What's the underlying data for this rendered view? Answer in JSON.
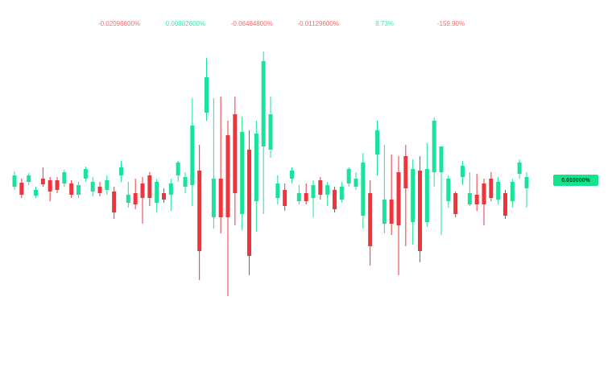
{
  "chart_data": {
    "type": "candlestick",
    "annotations": [
      {
        "text": "-0.02096600%",
        "color": "#f26b6b"
      },
      {
        "text": "0.00882600%",
        "color": "#3fe6b4"
      },
      {
        "text": "-0.06484800%",
        "color": "#f26b6b"
      },
      {
        "text": "-0.01129600%",
        "color": "#f26b6b"
      },
      {
        "text": "8.73%",
        "color": "#3fe6b4"
      },
      {
        "text": "-159.90%",
        "color": "#f26b6b"
      }
    ],
    "last_price": {
      "value": 0.01,
      "label": "0.010000%"
    },
    "last_price_color": "#14e38e",
    "up_color": "#19e39a",
    "down_color": "#f0343c",
    "ylim": [
      -0.111,
      0.122
    ],
    "categories": [
      null,
      null,
      null,
      null,
      null,
      null,
      null,
      null,
      null,
      null,
      null,
      null,
      null,
      null,
      null,
      null,
      null,
      null,
      null,
      null,
      null,
      null,
      null,
      null,
      null,
      null,
      null,
      null,
      null,
      null,
      null,
      null,
      null,
      null,
      null,
      null,
      null,
      null,
      null,
      null,
      null,
      null,
      null,
      null,
      null,
      null,
      null,
      null,
      null,
      null,
      null,
      null,
      null,
      null,
      null,
      null,
      null,
      null,
      null,
      null,
      null,
      null,
      null,
      null,
      null,
      null,
      null,
      null,
      null,
      null,
      null,
      null,
      null
    ],
    "open": [
      0.006,
      0.0085,
      0.009,
      0.0005,
      0.011,
      0.01,
      0.01,
      0.008,
      0.008,
      0.001,
      0.011,
      0.003,
      0.006,
      0.004,
      0.003,
      0.013,
      -0.004,
      0.002,
      0.008,
      0.013,
      -0.004,
      0.002,
      0.001,
      0.013,
      0.006,
      0.007,
      0.016,
      0.052,
      -0.013,
      0.011,
      0.038,
      0.051,
      -0.011,
      0.029,
      -0.003,
      0.031,
      0.029,
      -0.001,
      0.004,
      0.011,
      -0.003,
      0.002,
      -0.001,
      0.01,
      0.001,
      0.004,
      -0.002,
      0.008,
      0.006,
      -0.012,
      0.002,
      0.026,
      -0.017,
      -0.002,
      0.015,
      0.025,
      -0.016,
      0.016,
      -0.016,
      0.015,
      0.015,
      -0.003,
      0.002,
      0.012,
      -0.005,
      0.001,
      0.008,
      0.011,
      -0.002,
      0.002,
      -0.003,
      0.014,
      0.005
    ],
    "close": [
      0.013,
      0.001,
      0.013,
      0.004,
      0.0075,
      0.003,
      0.004,
      0.015,
      0.001,
      0.007,
      0.017,
      0.009,
      0.002,
      0.01,
      -0.01,
      0.018,
      0.001,
      -0.005,
      -0.001,
      -0.001,
      0.009,
      -0.002,
      0.008,
      0.021,
      0.012,
      0.044,
      -0.034,
      0.074,
      0.011,
      -0.013,
      -0.013,
      0.002,
      0.04,
      -0.037,
      0.039,
      0.084,
      0.051,
      0.008,
      -0.006,
      0.016,
      0.002,
      -0.003,
      0.007,
      0.001,
      0.007,
      -0.008,
      0.006,
      0.017,
      0.011,
      0.021,
      -0.031,
      0.041,
      -0.002,
      -0.017,
      -0.018,
      0.005,
      0.017,
      -0.034,
      0.017,
      0.047,
      0.031,
      0.011,
      -0.011,
      0.019,
      0.002,
      -0.005,
      -0.005,
      -0.001,
      0.009,
      -0.012,
      0.009,
      0.021,
      0.012
    ],
    "high": [
      0.0155,
      0.011,
      0.0145,
      0.006,
      0.018,
      0.012,
      0.012,
      0.0165,
      0.01,
      0.009,
      0.0185,
      0.012,
      0.009,
      0.013,
      0.006,
      0.022,
      0.009,
      0.011,
      0.012,
      0.015,
      0.011,
      0.005,
      0.011,
      0.022,
      0.015,
      0.061,
      0.032,
      0.086,
      0.061,
      0.062,
      0.047,
      0.062,
      0.0495,
      0.041,
      0.047,
      0.09,
      0.062,
      0.013,
      0.008,
      0.018,
      0.007,
      0.008,
      0.01,
      0.012,
      0.009,
      0.006,
      0.009,
      0.018,
      0.015,
      0.027,
      0.01,
      0.047,
      0.032,
      0.026,
      0.025,
      0.032,
      0.023,
      0.025,
      0.033,
      0.049,
      0.031,
      0.013,
      0.003,
      0.022,
      0.015,
      0.014,
      0.011,
      0.015,
      0.012,
      0.004,
      0.011,
      0.023,
      0.015
    ],
    "low": [
      0.004,
      -0.001,
      0.007,
      -0.001,
      0.006,
      -0.003,
      0.002,
      0.006,
      -0.001,
      -0.001,
      0.009,
      0,
      0,
      0.001,
      -0.014,
      0.009,
      -0.007,
      -0.008,
      -0.017,
      -0.006,
      -0.01,
      -0.004,
      -0.009,
      0.009,
      0.002,
      -0.006,
      -0.052,
      0.047,
      -0.02,
      -0.023,
      -0.062,
      -0.018,
      -0.021,
      -0.049,
      -0.022,
      -0.011,
      0.024,
      -0.005,
      -0.009,
      0.008,
      -0.005,
      -0.005,
      -0.013,
      -0.002,
      -0.006,
      -0.01,
      -0.004,
      0.006,
      0.004,
      -0.02,
      -0.043,
      0.013,
      -0.023,
      -0.024,
      -0.049,
      -0.031,
      -0.03,
      -0.041,
      -0.019,
      0.006,
      -0.024,
      -0.007,
      -0.013,
      0.007,
      -0.006,
      -0.009,
      -0.018,
      -0.003,
      -0.005,
      -0.014,
      -0.007,
      0.011,
      -0.007
    ]
  }
}
